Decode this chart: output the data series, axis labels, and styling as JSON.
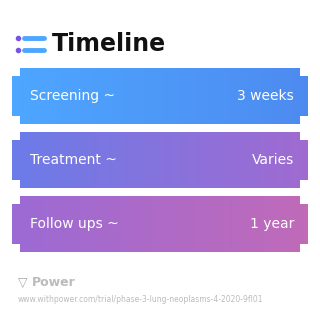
{
  "title": "Timeline",
  "background_color": "#ffffff",
  "rows": [
    {
      "label_left": "Screening ~",
      "label_right": "3 weeks",
      "color_left": "#4da6ff",
      "color_right": "#4d8af0"
    },
    {
      "label_left": "Treatment ~",
      "label_right": "Varies",
      "color_left": "#6b7be8",
      "color_right": "#a06ad0"
    },
    {
      "label_left": "Follow ups ~",
      "label_right": "1 year",
      "color_left": "#9b6ad4",
      "color_right": "#c06ab8"
    }
  ],
  "title_color": "#111111",
  "title_fontsize": 17,
  "icon_dot_color": "#7b52e8",
  "icon_line_color": "#4da6ff",
  "label_fontsize": 10,
  "footer_text": "Power",
  "footer_url": "www.withpower.com/trial/phase-3-lung-neoplasms-4-2020-9fl01",
  "footer_color": "#bbbbbb",
  "footer_fontsize": 5.5,
  "footer_icon_color": "#aaaaaa"
}
